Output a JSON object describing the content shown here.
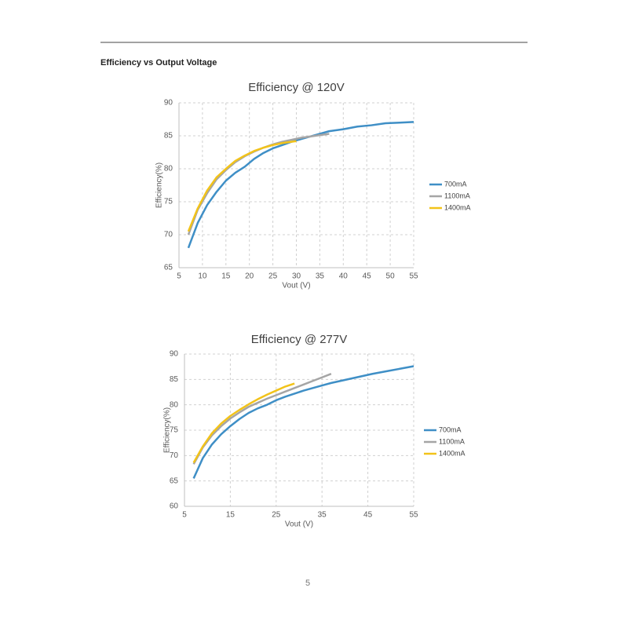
{
  "section_title": "Efficiency vs Output Voltage",
  "page_number": "5",
  "chart_data": [
    {
      "type": "line",
      "title": "Efficiency @ 120V",
      "x_label": "Vout (V)",
      "y_label": "Efficiency(%)",
      "xlim": [
        5,
        55
      ],
      "xticks": [
        5,
        10,
        15,
        20,
        25,
        30,
        35,
        40,
        45,
        50,
        55
      ],
      "ylim": [
        65,
        90
      ],
      "yticks": [
        65,
        70,
        75,
        80,
        85,
        90
      ],
      "grid": true,
      "legend": "right",
      "series": [
        {
          "name": "700mA",
          "color": "#3f8fc6",
          "x": [
            7,
            9,
            11,
            13,
            15,
            17,
            19,
            21,
            23,
            25,
            27,
            29,
            31,
            33,
            35,
            37,
            40,
            43,
            46,
            49,
            52,
            55
          ],
          "values": [
            68,
            71.8,
            74.5,
            76.5,
            78.2,
            79.4,
            80.3,
            81.5,
            82.4,
            83.1,
            83.6,
            84.1,
            84.5,
            84.9,
            85.3,
            85.7,
            86.0,
            86.4,
            86.6,
            86.9,
            87.0,
            87.1
          ]
        },
        {
          "name": "1100mA",
          "color": "#a5a5a5",
          "x": [
            7,
            9,
            11,
            13,
            15,
            17,
            19,
            21,
            23,
            25,
            27,
            29,
            31,
            33,
            35,
            37
          ],
          "values": [
            70,
            73.8,
            76.3,
            78.4,
            79.8,
            81.0,
            81.9,
            82.6,
            83.2,
            83.7,
            84.1,
            84.4,
            84.7,
            84.9,
            85.1,
            85.3
          ]
        },
        {
          "name": "1400mA",
          "color": "#f2c31a",
          "x": [
            7,
            9,
            11,
            13,
            15,
            17,
            19,
            21,
            23,
            25,
            27,
            30
          ],
          "values": [
            70.5,
            74,
            76.7,
            78.7,
            80,
            81.2,
            82,
            82.7,
            83.2,
            83.6,
            83.9,
            84.2
          ]
        }
      ]
    },
    {
      "type": "line",
      "title": "Efficiency @ 277V",
      "x_label": "Vout (V)",
      "y_label": "Efficiency(%)",
      "xlim": [
        5,
        55
      ],
      "xticks": [
        5,
        15,
        25,
        35,
        45,
        55
      ],
      "ylim": [
        60,
        90
      ],
      "yticks": [
        60,
        65,
        70,
        75,
        80,
        85,
        90
      ],
      "grid": true,
      "legend": "right",
      "series": [
        {
          "name": "700mA",
          "color": "#3f8fc6",
          "x": [
            7,
            9,
            11,
            13,
            15,
            17,
            19,
            21,
            23,
            25,
            27,
            29,
            31,
            33,
            35,
            37,
            40,
            43,
            46,
            49,
            52,
            55
          ],
          "values": [
            65.5,
            69.5,
            72.2,
            74.2,
            75.8,
            77.2,
            78.4,
            79.3,
            80,
            80.9,
            81.6,
            82.2,
            82.8,
            83.3,
            83.8,
            84.3,
            84.9,
            85.5,
            86.1,
            86.6,
            87.1,
            87.6
          ]
        },
        {
          "name": "1100mA",
          "color": "#a5a5a5",
          "x": [
            7,
            9,
            11,
            13,
            15,
            17,
            19,
            21,
            23,
            25,
            27,
            29,
            31,
            33,
            35,
            37
          ],
          "values": [
            68.3,
            71.6,
            74,
            75.8,
            77.3,
            78.5,
            79.6,
            80.4,
            81.2,
            81.9,
            82.6,
            83.3,
            84,
            84.7,
            85.4,
            86.1
          ]
        },
        {
          "name": "1400mA",
          "color": "#f2c31a",
          "x": [
            7,
            9,
            11,
            13,
            15,
            17,
            19,
            21,
            23,
            25,
            27,
            29
          ],
          "values": [
            68.6,
            71.8,
            74.4,
            76.3,
            77.8,
            79,
            80.1,
            81.1,
            82,
            82.8,
            83.6,
            84.2
          ]
        }
      ]
    }
  ]
}
